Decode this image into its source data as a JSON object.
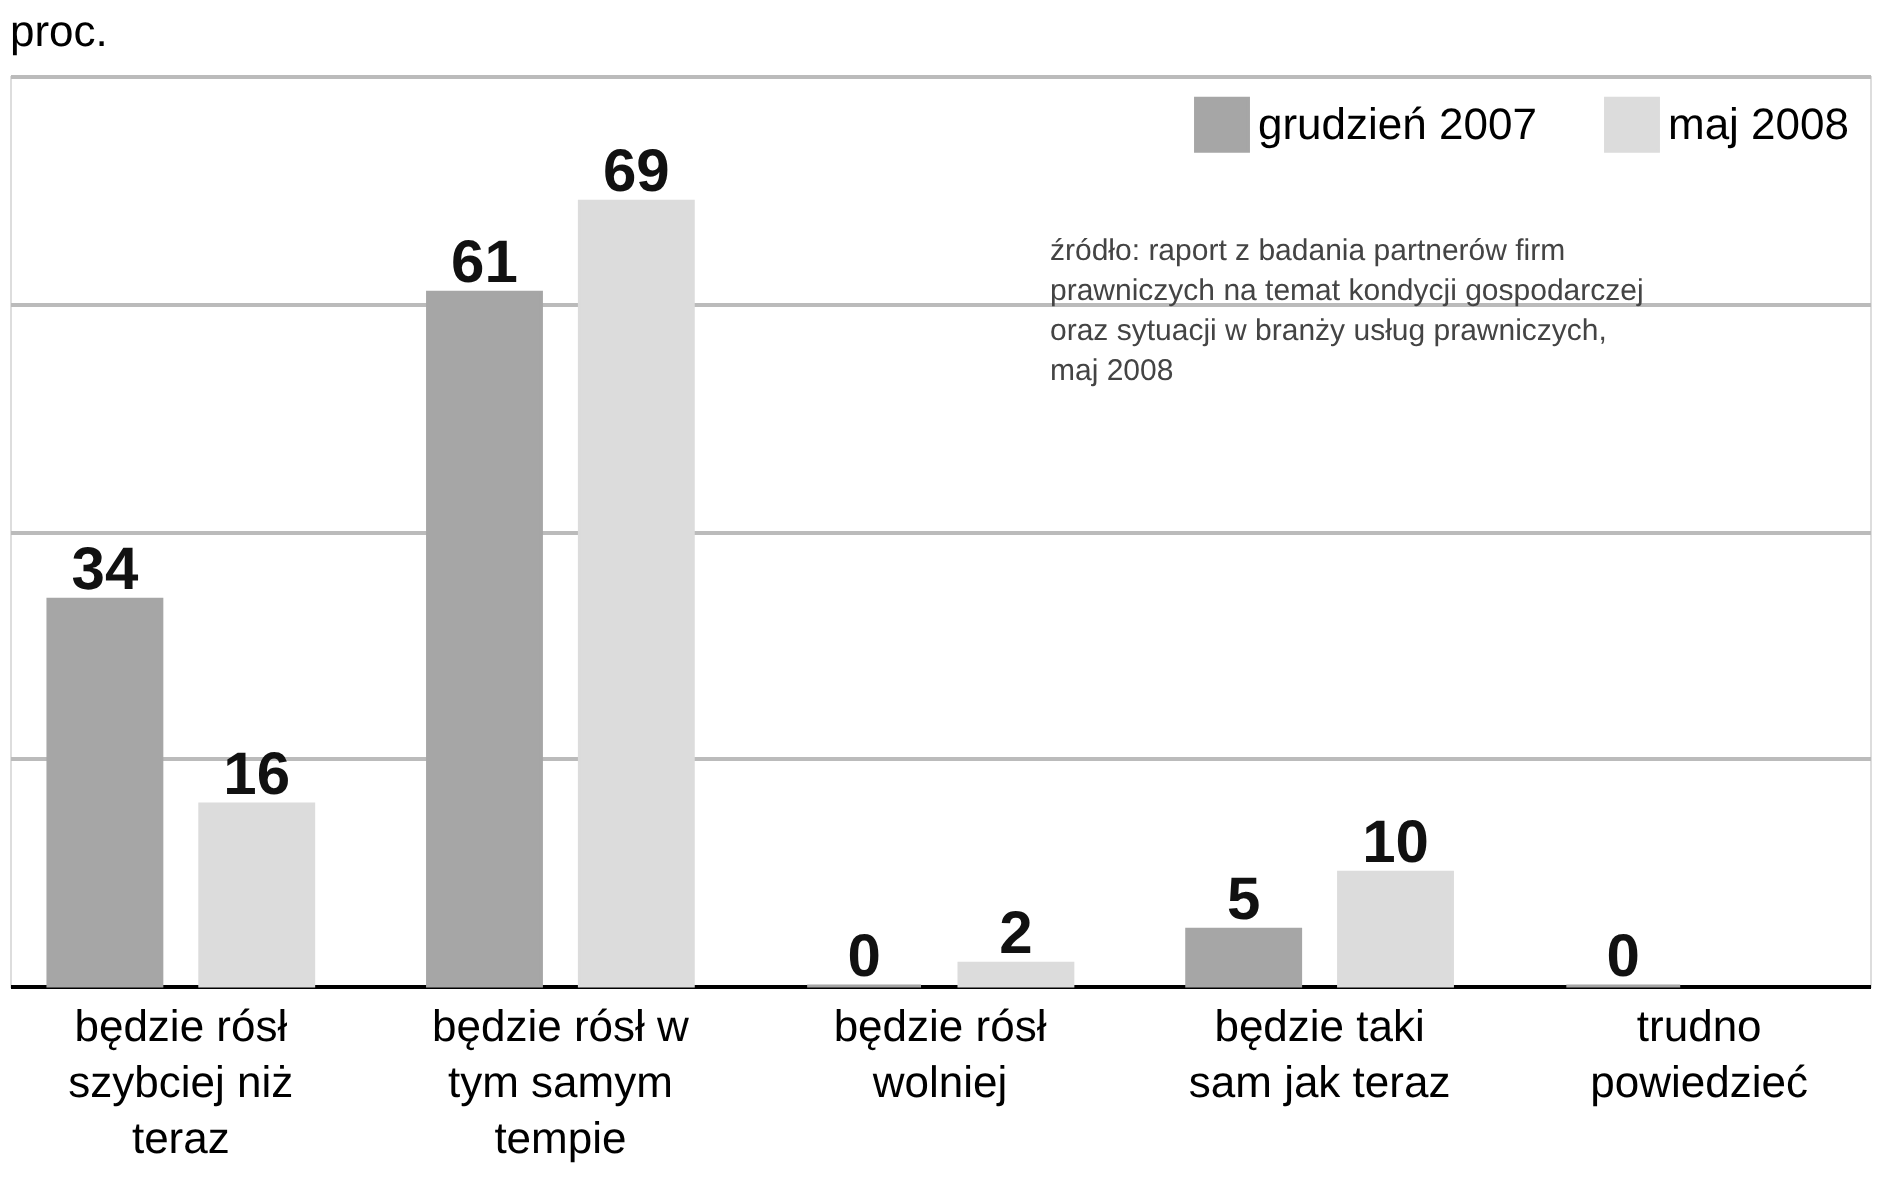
{
  "chart_data": {
    "type": "bar",
    "title": "proc.",
    "categories": [
      "będzie rósł szybciej niż teraz",
      "będzie rósł w tym samym tempie",
      "będzie rósł wolniej",
      "będzie taki sam jak teraz",
      "trudno powiedzieć"
    ],
    "series": [
      {
        "name": "grudzień 2007",
        "color": "#a6a6a6",
        "values": [
          34,
          61,
          0,
          5,
          0
        ]
      },
      {
        "name": "maj 2008",
        "color": "#dcdcdc",
        "values": [
          16,
          69,
          2,
          10,
          null
        ]
      }
    ],
    "ylim": [
      0,
      80
    ],
    "yticks": [
      {
        "value": 0,
        "label": null
      },
      {
        "value": 20,
        "label": null
      },
      {
        "value": 40,
        "label": null
      },
      {
        "value": 60,
        "label": null
      },
      {
        "value": 80,
        "label": null
      }
    ],
    "grid": "y",
    "legend": "top right",
    "data_labels": true,
    "tick_labels": "x",
    "annotations": [
      "źródło: raport z badania partnerów firm prawniczych na temat kondycji gospodarczej oraz sytuacji w branży usług prawniczych, maj 2008"
    ]
  }
}
